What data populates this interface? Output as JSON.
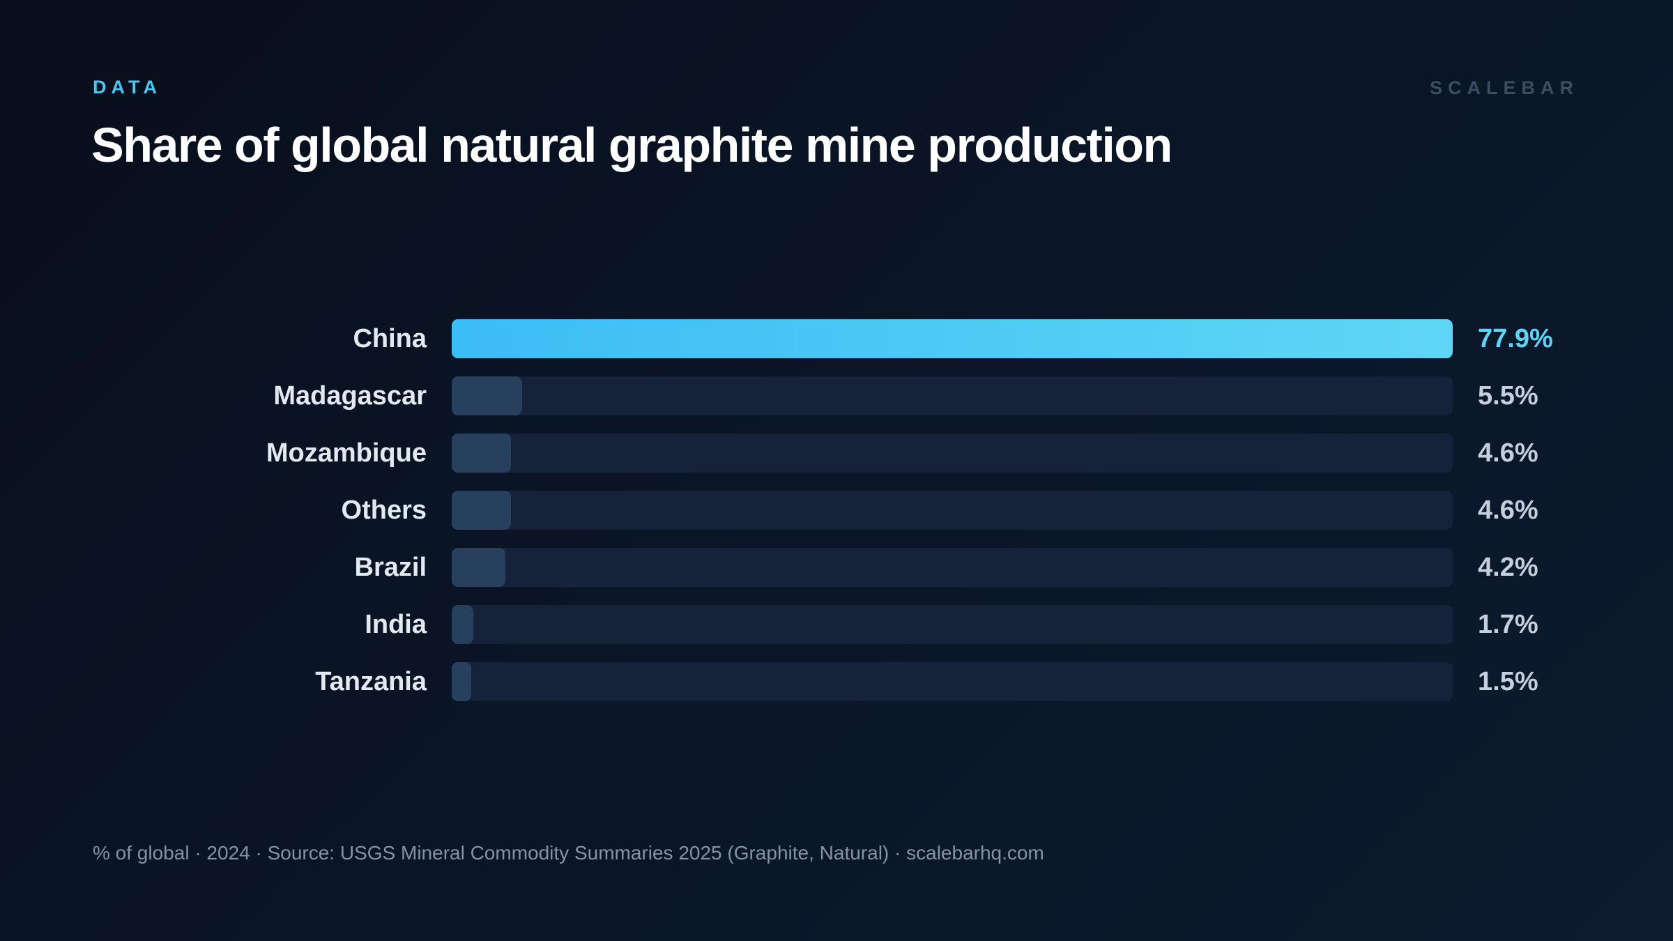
{
  "header": {
    "eyebrow": "DATA",
    "brand": "SCALEBAR",
    "title": "Share of global natural graphite mine production"
  },
  "footer": {
    "note": "% of global · 2024 · Source: USGS Mineral Commodity Summaries 2025 (Graphite, Natural) · scalebarhq.com"
  },
  "colors": {
    "accent": "#4cc6f0",
    "lead_bar_start": "#3bbdf5",
    "lead_bar_end": "#5fd6f5",
    "other_bar": "#27405e",
    "track": "#16223a",
    "background": "#0a1628"
  },
  "chart_data": {
    "type": "bar",
    "orientation": "horizontal",
    "title": "Share of global natural graphite mine production",
    "xlim": [
      0,
      77.9
    ],
    "categories": [
      "China",
      "Madagascar",
      "Mozambique",
      "Others",
      "Brazil",
      "India",
      "Tanzania"
    ],
    "values": [
      77.9,
      5.5,
      4.6,
      4.6,
      4.2,
      1.7,
      1.5
    ],
    "value_labels": [
      "77.9%",
      "5.5%",
      "4.6%",
      "4.6%",
      "4.2%",
      "1.7%",
      "1.5%"
    ]
  }
}
